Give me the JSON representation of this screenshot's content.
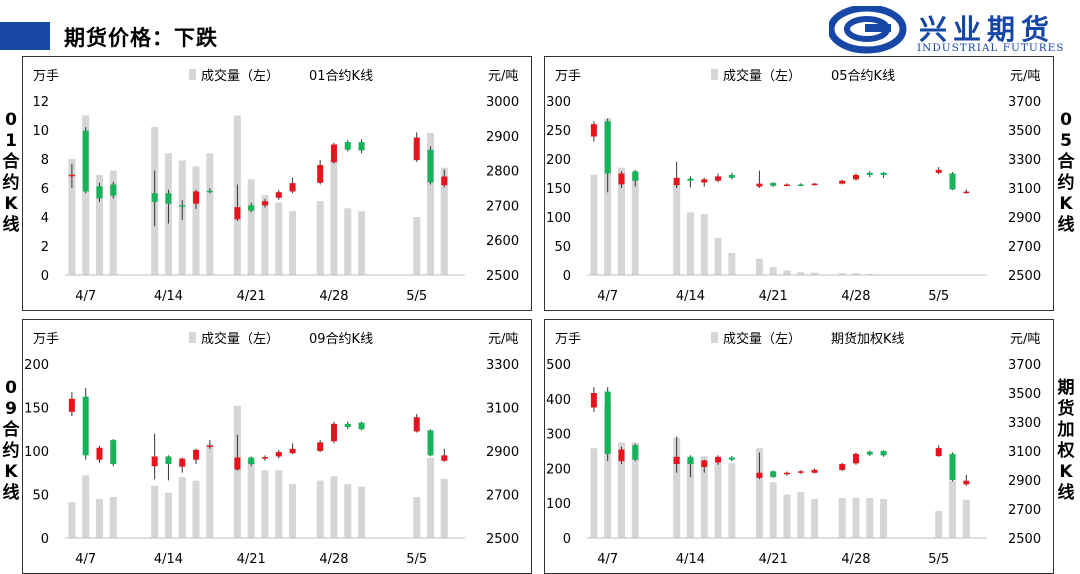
{
  "header": {
    "title": "期货价格：下跌",
    "logo_cn": "兴业期货",
    "logo_en": "INDUSTRIAL FUTURES"
  },
  "side_labels": {
    "p1": "01合约K线",
    "p2": "05合约K线",
    "p3": "09合约K线",
    "p4": "期货加权K线"
  },
  "colors": {
    "up": "#e8131c",
    "down": "#16b35a",
    "volume": "#d6d6d6",
    "brand": "#1646a6"
  },
  "chart_data": [
    {
      "type": "bar",
      "title": "01合约K线",
      "legend": [
        "成交量（左）",
        "01合约K线"
      ],
      "left_unit": "万手",
      "right_unit": "元/吨",
      "left_ylim": [
        0,
        12
      ],
      "left_ticks": [
        "0",
        "2",
        "4",
        "6",
        "8",
        "10",
        "12"
      ],
      "right_ylim": [
        2500,
        3000
      ],
      "right_ticks": [
        "2500",
        "2600",
        "2700",
        "2800",
        "2900",
        "3000"
      ],
      "x_labels": [
        {
          "label": "4/7",
          "idx": 1
        },
        {
          "label": "4/14",
          "idx": 7
        },
        {
          "label": "4/21",
          "idx": 13
        },
        {
          "label": "4/28",
          "idx": 19
        },
        {
          "label": "5/5",
          "idx": 25
        }
      ],
      "n_slots": 29,
      "volume": [
        {
          "i": 0,
          "v": 8.0
        },
        {
          "i": 1,
          "v": 11.0
        },
        {
          "i": 2,
          "v": 6.9
        },
        {
          "i": 3,
          "v": 7.2
        },
        {
          "i": 6,
          "v": 10.2
        },
        {
          "i": 7,
          "v": 8.4
        },
        {
          "i": 8,
          "v": 7.9
        },
        {
          "i": 9,
          "v": 7.5
        },
        {
          "i": 10,
          "v": 8.4
        },
        {
          "i": 12,
          "v": 11.0
        },
        {
          "i": 13,
          "v": 6.6
        },
        {
          "i": 14,
          "v": 5.5
        },
        {
          "i": 15,
          "v": 5.0
        },
        {
          "i": 16,
          "v": 4.4
        },
        {
          "i": 18,
          "v": 5.1
        },
        {
          "i": 19,
          "v": 8.0
        },
        {
          "i": 20,
          "v": 4.6
        },
        {
          "i": 21,
          "v": 4.4
        },
        {
          "i": 25,
          "v": 4.0
        },
        {
          "i": 26,
          "v": 9.8
        },
        {
          "i": 27,
          "v": 7.4
        }
      ],
      "candles": [
        {
          "i": 0,
          "o": 2788,
          "c": 2788,
          "h": 2820,
          "l": 2750
        },
        {
          "i": 1,
          "o": 2915,
          "c": 2740,
          "h": 2925,
          "l": 2735
        },
        {
          "i": 2,
          "o": 2755,
          "c": 2720,
          "h": 2765,
          "l": 2710
        },
        {
          "i": 3,
          "o": 2760,
          "c": 2728,
          "h": 2768,
          "l": 2720
        },
        {
          "i": 6,
          "o": 2735,
          "c": 2710,
          "h": 2800,
          "l": 2640
        },
        {
          "i": 7,
          "o": 2735,
          "c": 2705,
          "h": 2745,
          "l": 2648
        },
        {
          "i": 8,
          "o": 2700,
          "c": 2698,
          "h": 2715,
          "l": 2658
        },
        {
          "i": 9,
          "o": 2705,
          "c": 2740,
          "h": 2745,
          "l": 2690
        },
        {
          "i": 10,
          "o": 2742,
          "c": 2741,
          "h": 2750,
          "l": 2735
        },
        {
          "i": 12,
          "o": 2660,
          "c": 2695,
          "h": 2760,
          "l": 2655
        },
        {
          "i": 13,
          "o": 2700,
          "c": 2685,
          "h": 2708,
          "l": 2680
        },
        {
          "i": 14,
          "o": 2700,
          "c": 2712,
          "h": 2718,
          "l": 2694
        },
        {
          "i": 15,
          "o": 2722,
          "c": 2738,
          "h": 2744,
          "l": 2716
        },
        {
          "i": 16,
          "o": 2740,
          "c": 2764,
          "h": 2780,
          "l": 2735
        },
        {
          "i": 18,
          "o": 2765,
          "c": 2816,
          "h": 2830,
          "l": 2760
        },
        {
          "i": 19,
          "o": 2824,
          "c": 2875,
          "h": 2880,
          "l": 2820
        },
        {
          "i": 20,
          "o": 2882,
          "c": 2860,
          "h": 2888,
          "l": 2855
        },
        {
          "i": 21,
          "o": 2882,
          "c": 2858,
          "h": 2890,
          "l": 2850
        },
        {
          "i": 25,
          "o": 2830,
          "c": 2895,
          "h": 2910,
          "l": 2825
        },
        {
          "i": 26,
          "o": 2860,
          "c": 2766,
          "h": 2870,
          "l": 2760
        },
        {
          "i": 27,
          "o": 2758,
          "c": 2783,
          "h": 2803,
          "l": 2752
        }
      ]
    },
    {
      "type": "bar",
      "title": "05合约K线",
      "legend": [
        "成交量（左）",
        "05合约K线"
      ],
      "left_unit": "万手",
      "right_unit": "元/吨",
      "left_ylim": [
        0,
        300
      ],
      "left_ticks": [
        "0",
        "50",
        "100",
        "150",
        "200",
        "250",
        "300"
      ],
      "right_ylim": [
        2500,
        3700
      ],
      "right_ticks": [
        "2500",
        "2700",
        "2900",
        "3100",
        "3300",
        "3500",
        "3700"
      ],
      "x_labels": [
        {
          "label": "4/7",
          "idx": 1
        },
        {
          "label": "4/14",
          "idx": 7
        },
        {
          "label": "4/21",
          "idx": 13
        },
        {
          "label": "4/28",
          "idx": 19
        },
        {
          "label": "5/5",
          "idx": 25
        }
      ],
      "n_slots": 29,
      "volume": [
        {
          "i": 0,
          "v": 173
        },
        {
          "i": 1,
          "v": 270
        },
        {
          "i": 2,
          "v": 185
        },
        {
          "i": 3,
          "v": 175
        },
        {
          "i": 6,
          "v": 158
        },
        {
          "i": 7,
          "v": 108
        },
        {
          "i": 8,
          "v": 105
        },
        {
          "i": 9,
          "v": 64
        },
        {
          "i": 10,
          "v": 38
        },
        {
          "i": 12,
          "v": 28
        },
        {
          "i": 13,
          "v": 14
        },
        {
          "i": 14,
          "v": 8
        },
        {
          "i": 15,
          "v": 5
        },
        {
          "i": 16,
          "v": 4
        },
        {
          "i": 18,
          "v": 3
        },
        {
          "i": 19,
          "v": 3
        },
        {
          "i": 20,
          "v": 2
        },
        {
          "i": 21,
          "v": 1
        },
        {
          "i": 25,
          "v": 0.5
        },
        {
          "i": 26,
          "v": 0.5
        },
        {
          "i": 27,
          "v": 0.5
        }
      ],
      "candles": [
        {
          "i": 0,
          "o": 3455,
          "c": 3540,
          "h": 3560,
          "l": 3420
        },
        {
          "i": 1,
          "o": 3560,
          "c": 3200,
          "h": 3580,
          "l": 3070
        },
        {
          "i": 2,
          "o": 3125,
          "c": 3200,
          "h": 3215,
          "l": 3100
        },
        {
          "i": 3,
          "o": 3215,
          "c": 3150,
          "h": 3225,
          "l": 3110
        },
        {
          "i": 6,
          "o": 3120,
          "c": 3170,
          "h": 3280,
          "l": 3100
        },
        {
          "i": 7,
          "o": 3165,
          "c": 3150,
          "h": 3180,
          "l": 3105
        },
        {
          "i": 8,
          "o": 3138,
          "c": 3160,
          "h": 3170,
          "l": 3110
        },
        {
          "i": 9,
          "o": 3150,
          "c": 3180,
          "h": 3200,
          "l": 3140
        },
        {
          "i": 10,
          "o": 3190,
          "c": 3170,
          "h": 3205,
          "l": 3160
        },
        {
          "i": 12,
          "o": 3110,
          "c": 3130,
          "h": 3220,
          "l": 3100
        },
        {
          "i": 13,
          "o": 3135,
          "c": 3115,
          "h": 3140,
          "l": 3108
        },
        {
          "i": 14,
          "o": 3123,
          "c": 3124,
          "h": 3132,
          "l": 3112
        },
        {
          "i": 15,
          "o": 3124,
          "c": 3123,
          "h": 3132,
          "l": 3115
        },
        {
          "i": 16,
          "o": 3120,
          "c": 3130,
          "h": 3135,
          "l": 3115
        },
        {
          "i": 18,
          "o": 3130,
          "c": 3150,
          "h": 3156,
          "l": 3125
        },
        {
          "i": 19,
          "o": 3160,
          "c": 3190,
          "h": 3200,
          "l": 3150
        },
        {
          "i": 20,
          "o": 3205,
          "c": 3190,
          "h": 3215,
          "l": 3175
        },
        {
          "i": 21,
          "o": 3205,
          "c": 3190,
          "h": 3210,
          "l": 3170
        },
        {
          "i": 25,
          "o": 3205,
          "c": 3225,
          "h": 3245,
          "l": 3195
        },
        {
          "i": 26,
          "o": 3200,
          "c": 3090,
          "h": 3210,
          "l": 3085
        },
        {
          "i": 27,
          "o": 3070,
          "c": 3075,
          "h": 3090,
          "l": 3060
        }
      ]
    },
    {
      "type": "bar",
      "title": "09合约K线",
      "legend": [
        "成交量（左）",
        "09合约K线"
      ],
      "left_unit": "万手",
      "right_unit": "元/吨",
      "left_ylim": [
        0,
        200
      ],
      "left_ticks": [
        "0",
        "50",
        "100",
        "150",
        "200"
      ],
      "right_ylim": [
        2500,
        3300
      ],
      "right_ticks": [
        "2500",
        "2700",
        "2900",
        "3100",
        "3300"
      ],
      "x_labels": [
        {
          "label": "4/7",
          "idx": 1
        },
        {
          "label": "4/14",
          "idx": 7
        },
        {
          "label": "4/21",
          "idx": 13
        },
        {
          "label": "4/28",
          "idx": 19
        },
        {
          "label": "5/5",
          "idx": 25
        }
      ],
      "n_slots": 29,
      "volume": [
        {
          "i": 0,
          "v": 41
        },
        {
          "i": 1,
          "v": 72
        },
        {
          "i": 2,
          "v": 45
        },
        {
          "i": 3,
          "v": 47
        },
        {
          "i": 6,
          "v": 60
        },
        {
          "i": 7,
          "v": 52
        },
        {
          "i": 8,
          "v": 70
        },
        {
          "i": 9,
          "v": 66
        },
        {
          "i": 10,
          "v": 108
        },
        {
          "i": 12,
          "v": 152
        },
        {
          "i": 13,
          "v": 90
        },
        {
          "i": 14,
          "v": 78
        },
        {
          "i": 15,
          "v": 78
        },
        {
          "i": 16,
          "v": 62
        },
        {
          "i": 18,
          "v": 66
        },
        {
          "i": 19,
          "v": 71
        },
        {
          "i": 20,
          "v": 62
        },
        {
          "i": 21,
          "v": 59
        },
        {
          "i": 25,
          "v": 47
        },
        {
          "i": 26,
          "v": 92
        },
        {
          "i": 27,
          "v": 68
        }
      ],
      "candles": [
        {
          "i": 0,
          "o": 3080,
          "c": 3140,
          "h": 3170,
          "l": 3060
        },
        {
          "i": 1,
          "o": 3150,
          "c": 2880,
          "h": 3190,
          "l": 2860
        },
        {
          "i": 2,
          "o": 2860,
          "c": 2915,
          "h": 2925,
          "l": 2845
        },
        {
          "i": 3,
          "o": 2950,
          "c": 2840,
          "h": 2955,
          "l": 2830
        },
        {
          "i": 6,
          "o": 2830,
          "c": 2875,
          "h": 2980,
          "l": 2770
        },
        {
          "i": 7,
          "o": 2875,
          "c": 2840,
          "h": 2880,
          "l": 2765
        },
        {
          "i": 8,
          "o": 2828,
          "c": 2865,
          "h": 2870,
          "l": 2800
        },
        {
          "i": 9,
          "o": 2860,
          "c": 2905,
          "h": 2910,
          "l": 2840
        },
        {
          "i": 10,
          "o": 2920,
          "c": 2925,
          "h": 2950,
          "l": 2910
        },
        {
          "i": 12,
          "o": 2815,
          "c": 2870,
          "h": 2975,
          "l": 2810
        },
        {
          "i": 13,
          "o": 2870,
          "c": 2840,
          "h": 2875,
          "l": 2830
        },
        {
          "i": 14,
          "o": 2870,
          "c": 2872,
          "h": 2880,
          "l": 2855
        },
        {
          "i": 15,
          "o": 2875,
          "c": 2895,
          "h": 2905,
          "l": 2866
        },
        {
          "i": 16,
          "o": 2890,
          "c": 2910,
          "h": 2935,
          "l": 2885
        },
        {
          "i": 18,
          "o": 2900,
          "c": 2940,
          "h": 2950,
          "l": 2895
        },
        {
          "i": 19,
          "o": 2945,
          "c": 3025,
          "h": 3035,
          "l": 2935
        },
        {
          "i": 20,
          "o": 3025,
          "c": 3010,
          "h": 3035,
          "l": 3000
        },
        {
          "i": 21,
          "o": 3030,
          "c": 3000,
          "h": 3035,
          "l": 2995
        },
        {
          "i": 25,
          "o": 2990,
          "c": 3055,
          "h": 3070,
          "l": 2985
        },
        {
          "i": 26,
          "o": 2995,
          "c": 2880,
          "h": 3000,
          "l": 2875
        },
        {
          "i": 27,
          "o": 2855,
          "c": 2880,
          "h": 2910,
          "l": 2850
        }
      ]
    },
    {
      "type": "bar",
      "title": "期货加权K线",
      "legend": [
        "成交量（左）",
        "期货加权K线"
      ],
      "left_unit": "万手",
      "right_unit": "元/吨",
      "left_ylim": [
        0,
        500
      ],
      "left_ticks": [
        "0",
        "100",
        "200",
        "300",
        "400",
        "500"
      ],
      "right_ylim": [
        2500,
        3700
      ],
      "right_ticks": [
        "2500",
        "2700",
        "2900",
        "3100",
        "3300",
        "3500",
        "3700"
      ],
      "x_labels": [
        {
          "label": "4/7",
          "idx": 1
        },
        {
          "label": "4/14",
          "idx": 7
        },
        {
          "label": "4/21",
          "idx": 13
        },
        {
          "label": "4/28",
          "idx": 19
        },
        {
          "label": "5/5",
          "idx": 25
        }
      ],
      "n_slots": 29,
      "volume": [
        {
          "i": 0,
          "v": 258
        },
        {
          "i": 1,
          "v": 385
        },
        {
          "i": 2,
          "v": 275
        },
        {
          "i": 3,
          "v": 275
        },
        {
          "i": 6,
          "v": 288
        },
        {
          "i": 7,
          "v": 225
        },
        {
          "i": 8,
          "v": 235
        },
        {
          "i": 9,
          "v": 215
        },
        {
          "i": 10,
          "v": 215
        },
        {
          "i": 12,
          "v": 258
        },
        {
          "i": 13,
          "v": 160
        },
        {
          "i": 14,
          "v": 125
        },
        {
          "i": 15,
          "v": 132
        },
        {
          "i": 16,
          "v": 112
        },
        {
          "i": 18,
          "v": 115
        },
        {
          "i": 19,
          "v": 116
        },
        {
          "i": 20,
          "v": 115
        },
        {
          "i": 21,
          "v": 112
        },
        {
          "i": 25,
          "v": 78
        },
        {
          "i": 26,
          "v": 165
        },
        {
          "i": 27,
          "v": 110
        }
      ],
      "candles": [
        {
          "i": 0,
          "o": 3400,
          "c": 3500,
          "h": 3540,
          "l": 3370
        },
        {
          "i": 1,
          "o": 3510,
          "c": 3080,
          "h": 3540,
          "l": 3030
        },
        {
          "i": 2,
          "o": 3030,
          "c": 3110,
          "h": 3130,
          "l": 3010
        },
        {
          "i": 3,
          "o": 3140,
          "c": 3040,
          "h": 3150,
          "l": 3030
        },
        {
          "i": 6,
          "o": 3010,
          "c": 3060,
          "h": 3200,
          "l": 2950
        },
        {
          "i": 7,
          "o": 3060,
          "c": 3010,
          "h": 3070,
          "l": 2920
        },
        {
          "i": 8,
          "o": 2990,
          "c": 3035,
          "h": 3040,
          "l": 2950
        },
        {
          "i": 9,
          "o": 3020,
          "c": 3060,
          "h": 3070,
          "l": 3005
        },
        {
          "i": 10,
          "o": 3055,
          "c": 3040,
          "h": 3065,
          "l": 3030
        },
        {
          "i": 12,
          "o": 2915,
          "c": 2950,
          "h": 3090,
          "l": 2905
        },
        {
          "i": 13,
          "o": 2960,
          "c": 2920,
          "h": 2965,
          "l": 2915
        },
        {
          "i": 14,
          "o": 2945,
          "c": 2950,
          "h": 2958,
          "l": 2930
        },
        {
          "i": 15,
          "o": 2952,
          "c": 2960,
          "h": 2968,
          "l": 2942
        },
        {
          "i": 16,
          "o": 2950,
          "c": 2970,
          "h": 2980,
          "l": 2945
        },
        {
          "i": 18,
          "o": 2970,
          "c": 3010,
          "h": 3018,
          "l": 2962
        },
        {
          "i": 19,
          "o": 3015,
          "c": 3080,
          "h": 3090,
          "l": 3005
        },
        {
          "i": 20,
          "o": 3095,
          "c": 3075,
          "h": 3102,
          "l": 3065
        },
        {
          "i": 21,
          "o": 3100,
          "c": 3070,
          "h": 3105,
          "l": 3060
        },
        {
          "i": 25,
          "o": 3065,
          "c": 3120,
          "h": 3140,
          "l": 3060
        },
        {
          "i": 26,
          "o": 3080,
          "c": 2900,
          "h": 3090,
          "l": 2890
        },
        {
          "i": 27,
          "o": 2870,
          "c": 2895,
          "h": 2935,
          "l": 2860
        }
      ]
    }
  ]
}
